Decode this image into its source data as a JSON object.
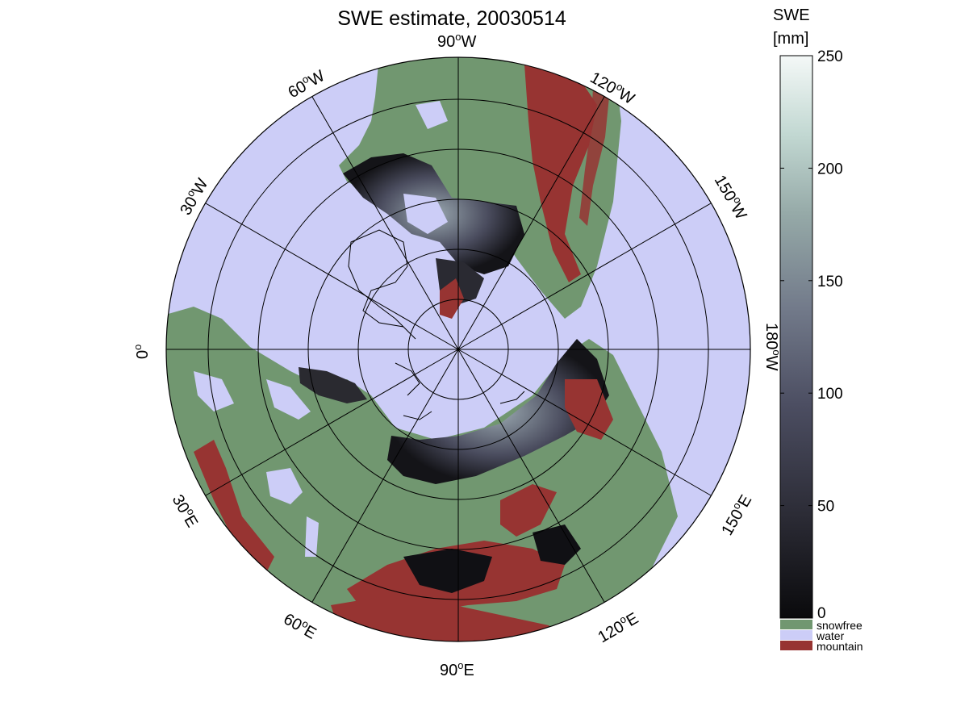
{
  "title": "SWE estimate, 20030514",
  "colorbar": {
    "label_line1": "SWE",
    "label_line2": "[mm]",
    "ticks": [
      "0",
      "50",
      "100",
      "150",
      "200",
      "250"
    ],
    "range": [
      0,
      250
    ],
    "colormap": [
      "#0a0a0c",
      "#2b2b35",
      "#4c4e62",
      "#727a8a",
      "#96aaa8",
      "#c2d8d2",
      "#f4f8f7"
    ]
  },
  "legend": [
    {
      "label": "snowfree",
      "color": "#719770"
    },
    {
      "label": "water",
      "color": "#cccdf7"
    },
    {
      "label": "mountain",
      "color": "#973432"
    }
  ],
  "map": {
    "projection": "north polar stereographic",
    "colors": {
      "ocean": "#cccdf7",
      "land": "#719770",
      "mountain": "#973432",
      "snow_dark": "#101014",
      "coast": "#000000"
    },
    "longitude_labels": [
      {
        "lon": "90",
        "sup": "o",
        "hemi": "W"
      },
      {
        "lon": "120",
        "sup": "o",
        "hemi": "W"
      },
      {
        "lon": "150",
        "sup": "o",
        "hemi": "W"
      },
      {
        "lon": "180",
        "sup": "o",
        "hemi": "W"
      },
      {
        "lon": "150",
        "sup": "o",
        "hemi": "E"
      },
      {
        "lon": "120",
        "sup": "o",
        "hemi": "E"
      },
      {
        "lon": "90",
        "sup": "o",
        "hemi": "E"
      },
      {
        "lon": "60",
        "sup": "o",
        "hemi": "E"
      },
      {
        "lon": "30",
        "sup": "o",
        "hemi": "E"
      },
      {
        "lon": "0",
        "sup": "o",
        "hemi": ""
      },
      {
        "lon": "30",
        "sup": "o",
        "hemi": "W"
      },
      {
        "lon": "60",
        "sup": "o",
        "hemi": "W"
      }
    ]
  }
}
